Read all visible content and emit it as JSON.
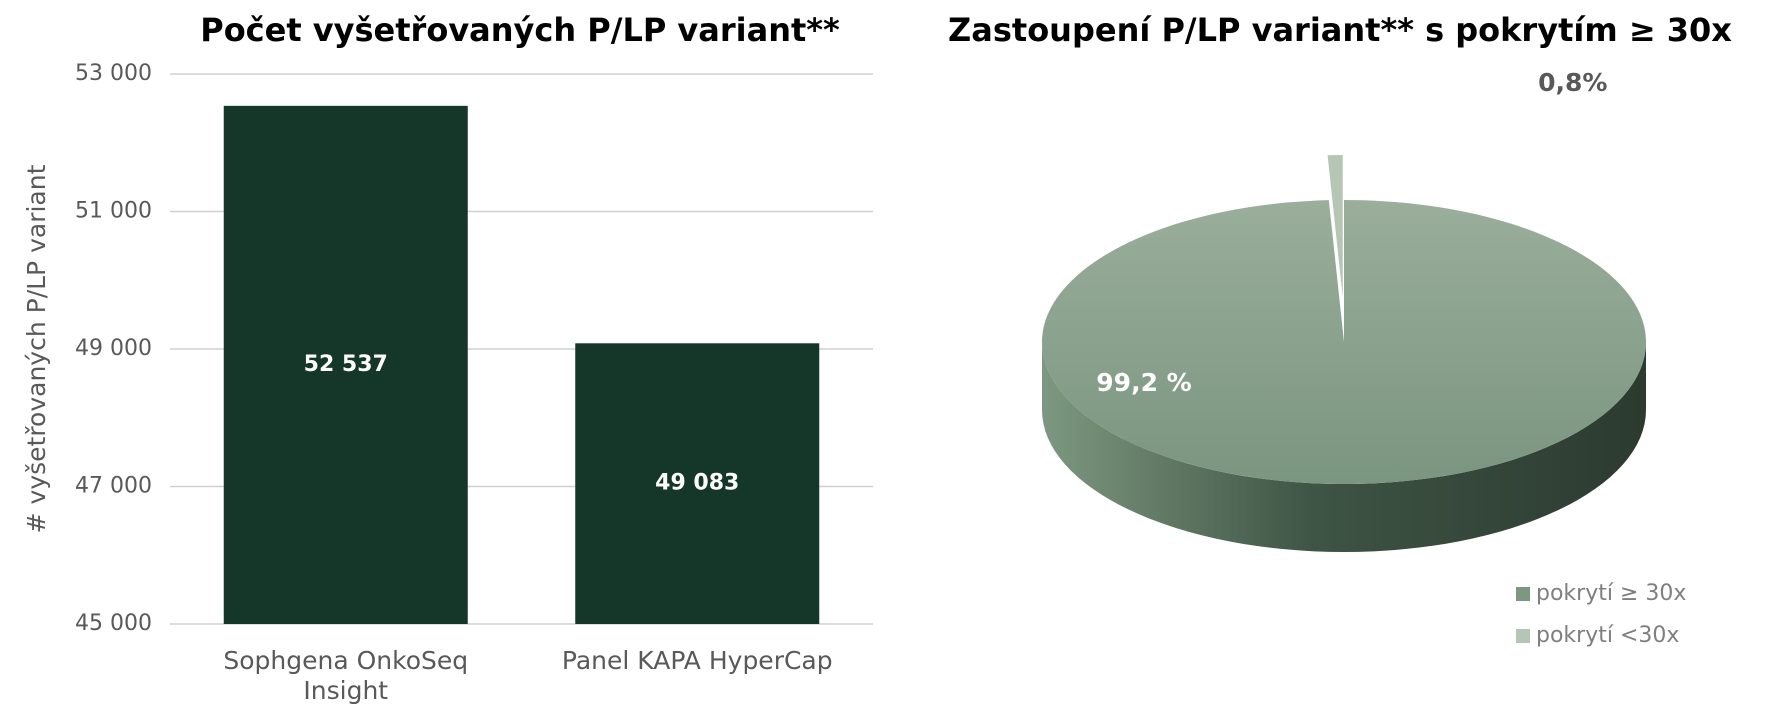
{
  "chart_data": [
    {
      "type": "bar",
      "title": "Počet vyšetřovaných P/LP variant**",
      "y_label": "# vyšetřovaných P/LP variant",
      "categories": [
        "Sophgena OnkoSeq Insight",
        "Panel KAPA HyperCap"
      ],
      "values": [
        52537,
        49083
      ],
      "value_labels": [
        "52 537",
        "49 083"
      ],
      "color": "#14372a",
      "ylim": [
        45000,
        53000
      ],
      "yticks": [
        {
          "value": 45000,
          "label": "45 000"
        },
        {
          "value": 47000,
          "label": "47 000"
        },
        {
          "value": 49000,
          "label": "49 000"
        },
        {
          "value": 51000,
          "label": "51 000"
        },
        {
          "value": 53000,
          "label": "53 000"
        }
      ],
      "grid": true
    },
    {
      "type": "pie",
      "title": "Zastoupení P/LP variant** s pokrytím ≥ 30x",
      "categories": [
        "pokrytí ≥ 30x",
        "pokrytí <30x"
      ],
      "values": [
        99.2,
        0.8
      ],
      "value_labels": [
        "99,2 %",
        "0,8%"
      ],
      "colors": [
        "#7d9880",
        "#b5c6b4"
      ],
      "legend": "bottom-right"
    }
  ]
}
